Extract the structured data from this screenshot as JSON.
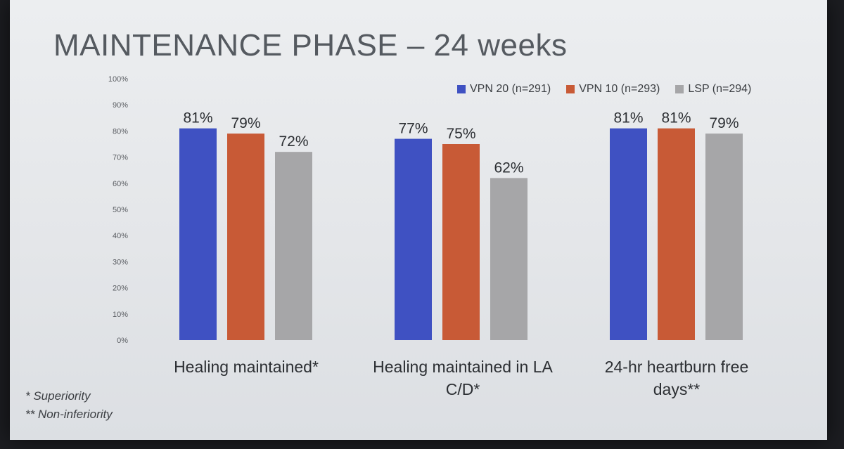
{
  "slide": {
    "title": "MAINTENANCE PHASE – 24 weeks",
    "footnotes": [
      "* Superiority",
      "** Non-inferiority"
    ]
  },
  "chart_data": {
    "type": "bar",
    "title": "",
    "xlabel": "",
    "ylabel": "",
    "ylim": [
      0,
      100
    ],
    "yticks": [
      "0%",
      "10%",
      "20%",
      "30%",
      "40%",
      "50%",
      "60%",
      "70%",
      "80%",
      "90%",
      "100%"
    ],
    "categories": [
      "Healing  maintained*",
      "Healing maintained in LA C/D*",
      "24-hr heartburn free days**"
    ],
    "series": [
      {
        "name": "VPN 20 (n=291)",
        "color": "#3f51c2",
        "values": [
          81,
          77,
          81
        ],
        "labels": [
          "81%",
          "77%",
          "81%"
        ]
      },
      {
        "name": "VPN 10 (n=293)",
        "color": "#c85a36",
        "values": [
          79,
          75,
          81
        ],
        "labels": [
          "79%",
          "75%",
          "81%"
        ]
      },
      {
        "name": "LSP (n=294)",
        "color": "#a6a6a8",
        "values": [
          72,
          62,
          79
        ],
        "labels": [
          "72%",
          "62%",
          "79%"
        ]
      }
    ],
    "legend": "top-right",
    "grid": false
  }
}
